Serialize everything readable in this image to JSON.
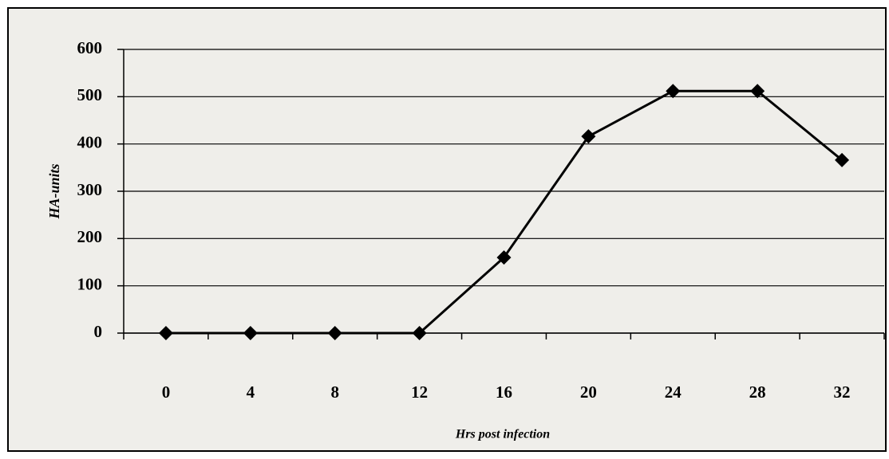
{
  "chart_data": {
    "type": "line",
    "x_label": "Hrs post infection",
    "y_label": "HA-units",
    "categories": [
      "0",
      "4",
      "8",
      "12",
      "16",
      "20",
      "24",
      "28",
      "32"
    ],
    "series": [
      {
        "name": "HA-units",
        "color": "#000000",
        "values": [
          0,
          0,
          0,
          0,
          160,
          416,
          512,
          512,
          366
        ]
      }
    ],
    "ylim": [
      0,
      600
    ],
    "yticks": [
      0,
      100,
      200,
      300,
      400,
      500,
      600
    ],
    "grid": true
  }
}
